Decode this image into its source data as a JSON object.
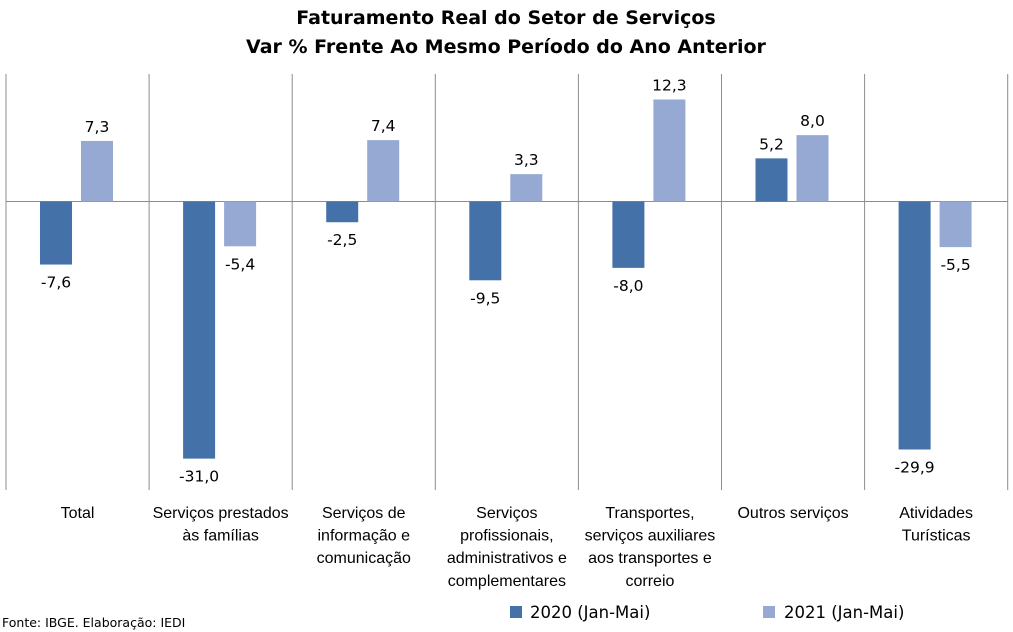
{
  "chart_data": {
    "type": "bar",
    "title": "Faturamento Real do Setor de Serviços",
    "subtitle": "Var % Frente Ao Mesmo Período do Ano Anterior",
    "categories": [
      [
        "Total"
      ],
      [
        "Serviços prestados",
        "às famílias"
      ],
      [
        "Serviços de",
        "informação e",
        "comunicação"
      ],
      [
        "Serviços",
        "profissionais,",
        "administrativos e",
        "complementares"
      ],
      [
        "Transportes,",
        "serviços auxiliares",
        "aos transportes e",
        "correio"
      ],
      [
        "Outros serviços"
      ],
      [
        "Atividades",
        "Turísticas"
      ]
    ],
    "series": [
      {
        "name": "2020 (Jan-Mai)",
        "color": "#4472a8",
        "values": [
          -7.6,
          -31.0,
          -2.5,
          -9.5,
          -8.0,
          5.2,
          -29.9
        ],
        "labels": [
          "-7,6",
          "-31,0",
          "-2,5",
          "-9,5",
          "-8,0",
          "5,2",
          "-29,9"
        ]
      },
      {
        "name": "2021 (Jan-Mai)",
        "color": "#95a9d3",
        "values": [
          7.3,
          -5.4,
          7.4,
          3.3,
          12.3,
          8.0,
          -5.5
        ],
        "labels": [
          "7,3",
          "-5,4",
          "7,4",
          "3,3",
          "12,3",
          "8,0",
          "-5,5"
        ]
      }
    ],
    "ylim": [
      -31.0,
      12.3
    ],
    "grid": true,
    "legend": "bottom-right"
  },
  "source": "Fonte: IBGE. Elaboração: IEDI"
}
